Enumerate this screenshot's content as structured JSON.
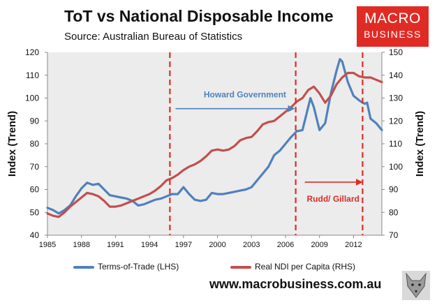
{
  "header": {
    "title": "ToT vs National Disposable Income",
    "subtitle": "Source: Australian Bureau of Statistics"
  },
  "logo": {
    "line1": "MACRO",
    "line2": "BUSINESS"
  },
  "footer": {
    "url": "www.macrobusiness.com.au"
  },
  "legend": {
    "series1": "Terms-of-Trade (LHS)",
    "series2": "Real NDI per Capita (RHS)"
  },
  "colors": {
    "tot": "#4f81bd",
    "ndi": "#c0504d",
    "accent": "#e02b25",
    "annotation": "#4f81bd",
    "period_line": "#e02b25"
  },
  "chart_data": {
    "type": "line",
    "xlim": [
      1985,
      2014.5
    ],
    "x_ticks": [
      "1985",
      "1988",
      "1991",
      "1994",
      "1997",
      "2000",
      "2003",
      "2006",
      "2009",
      "2012"
    ],
    "y_left": {
      "label": "Index (Trend)",
      "lim": [
        40,
        120
      ],
      "ticks": [
        "40",
        "50",
        "60",
        "70",
        "80",
        "90",
        "100",
        "110",
        "120"
      ]
    },
    "y_right": {
      "label": "Index (Trend)",
      "lim": [
        70,
        150
      ],
      "ticks": [
        "70",
        "80",
        "90",
        "100",
        "110",
        "120",
        "130",
        "140",
        "150"
      ]
    },
    "grid": false,
    "legend_position": "bottom",
    "annotations": [
      {
        "text": "Howard Government",
        "arrow_from": 1996.3,
        "arrow_to": 2006.7,
        "y_left": 103
      },
      {
        "text": "Rudd/ Gillard",
        "arrow_from": 2007.7,
        "arrow_to": 2012.7,
        "y_left": 62
      }
    ],
    "period_lines": [
      1995.8,
      2006.9,
      2012.8
    ],
    "series": [
      {
        "name": "Terms-of-Trade (LHS)",
        "axis": "left",
        "x": [
          1985,
          1985.5,
          1986,
          1986.5,
          1987,
          1987.5,
          1988,
          1988.5,
          1989,
          1989.5,
          1990,
          1990.5,
          1991,
          1991.5,
          1992,
          1992.5,
          1993,
          1993.5,
          1994,
          1994.5,
          1995,
          1995.5,
          1996,
          1996.5,
          1997,
          1997.5,
          1998,
          1998.5,
          1999,
          1999.5,
          2000,
          2000.5,
          2001,
          2001.5,
          2002,
          2002.5,
          2003,
          2003.5,
          2004,
          2004.5,
          2005,
          2005.5,
          2006,
          2006.5,
          2007,
          2007.5,
          2007.8,
          2008.2,
          2008.5,
          2009,
          2009.5,
          2010,
          2010.5,
          2010.8,
          2011,
          2011.5,
          2012,
          2012.5,
          2012.8,
          2013,
          2013.2,
          2013.5,
          2014,
          2014.5
        ],
        "y": [
          52,
          51,
          49.5,
          51,
          53,
          57,
          60.5,
          63,
          62,
          62.5,
          60,
          57.5,
          57,
          56.5,
          56,
          55,
          53,
          53.5,
          54.5,
          55.5,
          56,
          57,
          58,
          58,
          61,
          58,
          55.5,
          55,
          55.5,
          58.5,
          58,
          58,
          58.5,
          59,
          59.5,
          60,
          61,
          64,
          67,
          70,
          75,
          77,
          80,
          83,
          85.5,
          86,
          92,
          100,
          96,
          86,
          89,
          102,
          112,
          117,
          116,
          107,
          101,
          99,
          98,
          97.5,
          98,
          91,
          89,
          86
        ]
      },
      {
        "name": "Real NDI per Capita (RHS)",
        "axis": "right",
        "x": [
          1985,
          1985.5,
          1986,
          1986.5,
          1987,
          1987.5,
          1988,
          1988.5,
          1989,
          1989.5,
          1990,
          1990.5,
          1991,
          1991.5,
          1992,
          1992.5,
          1993,
          1993.5,
          1994,
          1994.5,
          1995,
          1995.5,
          1996,
          1996.5,
          1997,
          1997.5,
          1998,
          1998.5,
          1999,
          1999.5,
          2000,
          2000.5,
          2001,
          2001.5,
          2002,
          2002.5,
          2003,
          2003.5,
          2004,
          2004.5,
          2005,
          2005.5,
          2006,
          2006.5,
          2007,
          2007.5,
          2008,
          2008.5,
          2009,
          2009.5,
          2010,
          2010.5,
          2011,
          2011.5,
          2012,
          2012.5,
          2013,
          2013.5,
          2014,
          2014.5
        ],
        "y": [
          79.5,
          78.5,
          78,
          80,
          82.5,
          84.5,
          86.5,
          88.5,
          88,
          87,
          85,
          82.5,
          82.5,
          83,
          84,
          85,
          86,
          87,
          88,
          89.5,
          91.5,
          94,
          95,
          96.5,
          98.5,
          100,
          101,
          102.5,
          104.5,
          107,
          107.5,
          107,
          107.5,
          109,
          111.5,
          112.5,
          113,
          115.5,
          118.5,
          119.5,
          120,
          122,
          124,
          126,
          128.5,
          130,
          133.5,
          135,
          132,
          128,
          131,
          136,
          139,
          141,
          141,
          139.5,
          139,
          139,
          138,
          137
        ]
      }
    ]
  }
}
